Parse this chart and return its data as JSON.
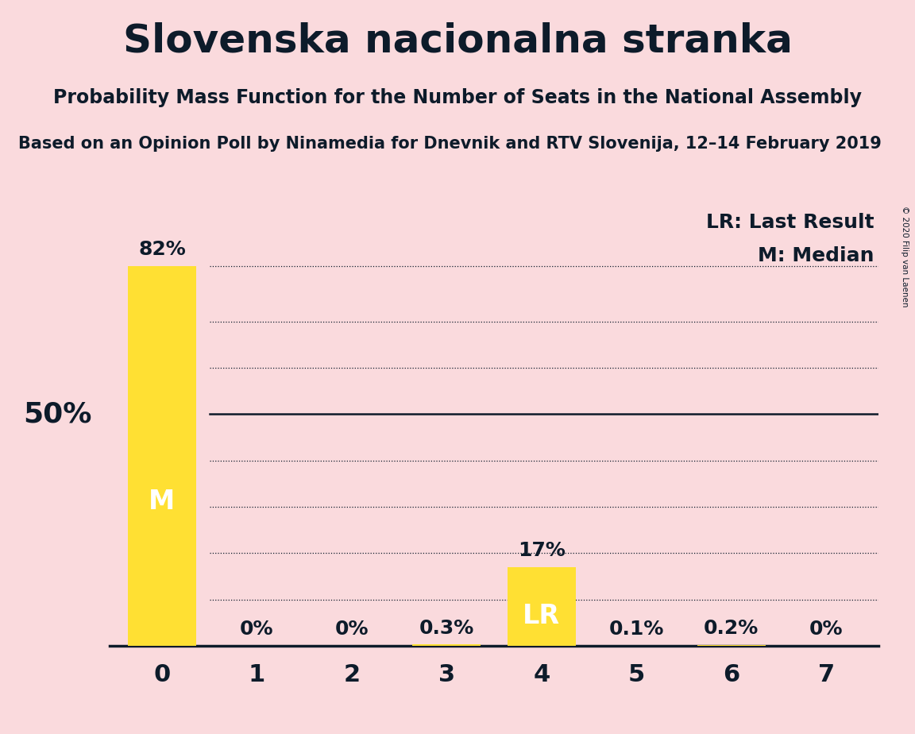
{
  "title": "Slovenska nacionalna stranka",
  "subtitle": "Probability Mass Function for the Number of Seats in the National Assembly",
  "source": "Based on an Opinion Poll by Ninamedia for Dnevnik and RTV Slovenija, 12–14 February 2019",
  "copyright": "© 2020 Filip van Laenen",
  "categories": [
    0,
    1,
    2,
    3,
    4,
    5,
    6,
    7
  ],
  "values": [
    82,
    0,
    0,
    0.3,
    17,
    0.1,
    0.2,
    0
  ],
  "labels": [
    "82%",
    "0%",
    "0%",
    "0.3%",
    "17%",
    "0.1%",
    "0.2%",
    "0%"
  ],
  "bar_labels": [
    "M",
    "",
    "",
    "",
    "LR",
    "",
    "",
    ""
  ],
  "bar_color": "#FFE033",
  "background_color": "#FADADD",
  "text_color": "#0D1B2A",
  "ylabel_text": "50%",
  "ylabel_value": 50,
  "median_bar": 0,
  "lr_bar": 4,
  "ylim": [
    0,
    95
  ],
  "dotted_gridlines": [
    82,
    70,
    60,
    40,
    30,
    20,
    10
  ],
  "solid_gridline": 50,
  "title_fontsize": 36,
  "subtitle_fontsize": 17,
  "source_fontsize": 15,
  "label_fontsize": 18,
  "bar_label_fontsize": 24,
  "axis_fontsize": 22,
  "ylabel_fontsize": 26
}
